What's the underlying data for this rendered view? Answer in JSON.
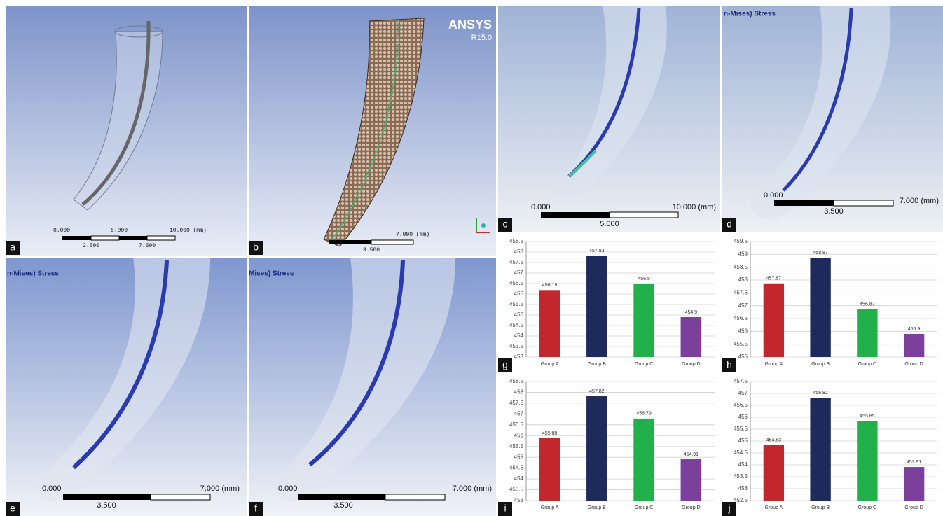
{
  "panels": [
    {
      "label": "a",
      "scale_labels": [
        "0.000",
        "5.000",
        "10.000 (mm)",
        "2.500",
        "7.500"
      ]
    },
    {
      "label": "b",
      "brand": "ANSYS",
      "version": "R15.0",
      "scale_labels": [
        "7.000 (mm)",
        "3.500"
      ]
    },
    {
      "label": "c",
      "scale_labels": [
        "0.000",
        "10.000 (mm)",
        "5.000"
      ]
    },
    {
      "label": "d",
      "stress_title": "n-Mises) Stress",
      "scale_labels": [
        "0.000",
        "7.000 (mm)",
        "3.500"
      ]
    },
    {
      "label": "e",
      "stress_title": "n-Mises) Stress",
      "scale_labels": [
        "0.000",
        "7.000 (mm)",
        "3.500"
      ]
    },
    {
      "label": "f",
      "stress_title": "Mises) Stress",
      "scale_labels": [
        "0.000",
        "7.000 (mm)",
        "3.500"
      ]
    },
    {
      "label": "g"
    },
    {
      "label": "h"
    },
    {
      "label": "i"
    },
    {
      "label": "j"
    }
  ],
  "chart_data": [
    {
      "type": "bar",
      "categories": [
        "Group A",
        "Group B",
        "Group C",
        "Group D"
      ],
      "values": [
        456.19,
        457.83,
        456.5,
        454.9
      ],
      "colors": [
        "#c1272d",
        "#1e2a5c",
        "#22b04b",
        "#7b3f9c"
      ],
      "ylim": [
        453,
        458.5
      ],
      "yticks": [
        453,
        453.5,
        454,
        454.5,
        455,
        455.5,
        456,
        456.5,
        457,
        457.5,
        458,
        458.5
      ],
      "grid": true
    },
    {
      "type": "bar",
      "categories": [
        "Group A",
        "Group B",
        "Group C",
        "Group D"
      ],
      "values": [
        457.87,
        458.87,
        456.87,
        455.9
      ],
      "colors": [
        "#c1272d",
        "#1e2a5c",
        "#22b04b",
        "#7b3f9c"
      ],
      "ylim": [
        455,
        459.5
      ],
      "yticks": [
        455,
        455.5,
        456,
        456.5,
        457,
        457.5,
        458,
        458.5,
        459,
        459.5
      ],
      "grid": true
    },
    {
      "type": "bar",
      "categories": [
        "Group A",
        "Group B",
        "Group C",
        "Group D"
      ],
      "values": [
        455.88,
        457.82,
        456.79,
        454.91
      ],
      "colors": [
        "#c1272d",
        "#1e2a5c",
        "#22b04b",
        "#7b3f9c"
      ],
      "ylim": [
        453,
        458.5
      ],
      "yticks": [
        453,
        453.5,
        454,
        454.5,
        455,
        455.5,
        456,
        456.5,
        457,
        457.5,
        458,
        458.5
      ],
      "grid": true
    },
    {
      "type": "bar",
      "categories": [
        "Group A",
        "Group B",
        "Group C",
        "Group D"
      ],
      "values": [
        454.83,
        456.82,
        455.85,
        453.91
      ],
      "colors": [
        "#c1272d",
        "#1e2a5c",
        "#22b04b",
        "#7b3f9c"
      ],
      "ylim": [
        452.5,
        457.5
      ],
      "yticks": [
        452.5,
        453,
        453.5,
        454,
        454.5,
        455,
        455.5,
        456,
        456.5,
        457,
        457.5
      ],
      "grid": true
    }
  ]
}
